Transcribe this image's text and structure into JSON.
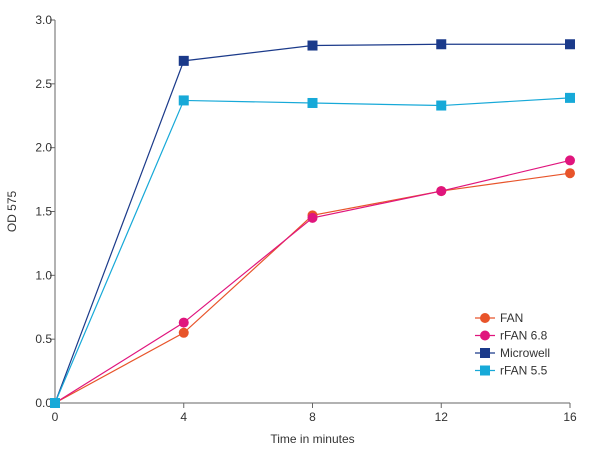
{
  "chart_data": {
    "type": "line",
    "title": "",
    "xlabel": "Time in minutes",
    "ylabel": "OD 575",
    "x": [
      0,
      4,
      8,
      12,
      16
    ],
    "xticks": [
      "0",
      "4",
      "8",
      "12",
      "16"
    ],
    "xlim": [
      0,
      16
    ],
    "yticks": [
      "0.0",
      "0.5",
      "1.0",
      "1.5",
      "2.0",
      "2.5",
      "3.0"
    ],
    "ylim": [
      0,
      3
    ],
    "grid": false,
    "legend_position": "bottom-right",
    "series": [
      {
        "name": "FAN",
        "marker": "circle",
        "color": "#e8542a",
        "values": [
          0,
          0.55,
          1.47,
          1.66,
          1.8
        ]
      },
      {
        "name": "rFAN 6.8",
        "marker": "circle",
        "color": "#e0157d",
        "values": [
          0,
          0.63,
          1.45,
          1.66,
          1.9
        ]
      },
      {
        "name": "Microwell",
        "marker": "square",
        "color": "#1b3a8a",
        "values": [
          0,
          2.68,
          2.8,
          2.81,
          2.81
        ]
      },
      {
        "name": "rFAN 5.5",
        "marker": "square",
        "color": "#17a9d8",
        "values": [
          0,
          2.37,
          2.35,
          2.33,
          2.39
        ]
      }
    ]
  }
}
